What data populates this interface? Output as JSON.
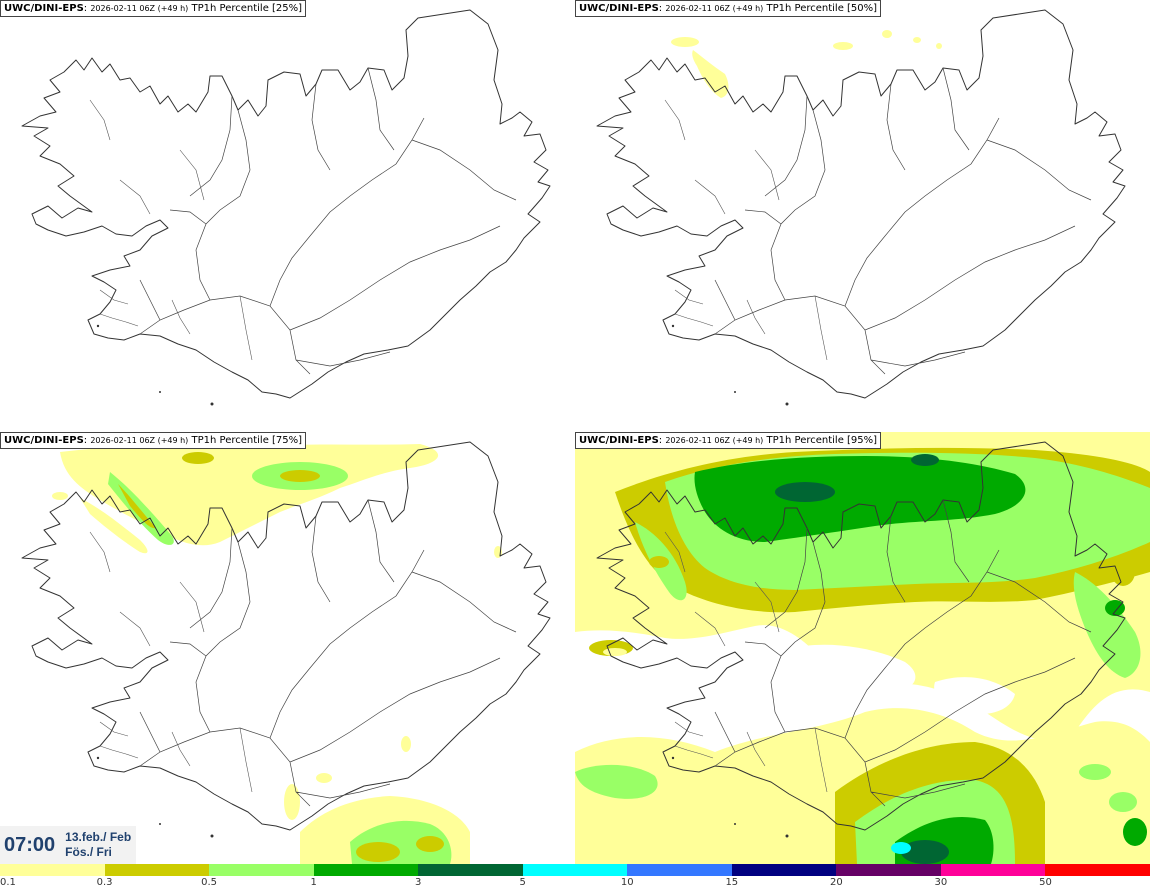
{
  "panels": [
    {
      "id": "p25",
      "model": "UWC/DINI-EPS",
      "run": "2026-02-11 06Z (+49 h)",
      "field": "TP1h Percentile [25%]"
    },
    {
      "id": "p50",
      "model": "UWC/DINI-EPS",
      "run": "2026-02-11 06Z (+49 h)",
      "field": "TP1h Percentile [50%]"
    },
    {
      "id": "p75",
      "model": "UWC/DINI-EPS",
      "run": "2026-02-11 06Z (+49 h)",
      "field": "TP1h Percentile [75%]"
    },
    {
      "id": "p95",
      "model": "UWC/DINI-EPS",
      "run": "2026-02-11 06Z (+49 h)",
      "field": "TP1h Percentile [95%]"
    }
  ],
  "time": {
    "clock": "07:00",
    "date_line": "13.feb./ Feb",
    "day_line": "Fös./ Fri"
  },
  "legend": {
    "colors": [
      "#ffff99",
      "#cccc00",
      "#99ff66",
      "#00aa00",
      "#006633",
      "#00ffff",
      "#3377ff",
      "#000080",
      "#660066",
      "#ff0099",
      "#ff0000"
    ],
    "labels": [
      "0.1",
      "0.3",
      "0.5",
      "1",
      "3",
      "5",
      "10",
      "15",
      "20",
      "30",
      "50"
    ]
  },
  "palette": {
    "yellow": "#ffff99",
    "olive": "#cccc00",
    "lightgreen": "#99ff66",
    "green": "#00aa00",
    "darkgreen": "#006633",
    "cyan": "#00ffff",
    "coast": "#333333",
    "time_text": "#20416e"
  }
}
